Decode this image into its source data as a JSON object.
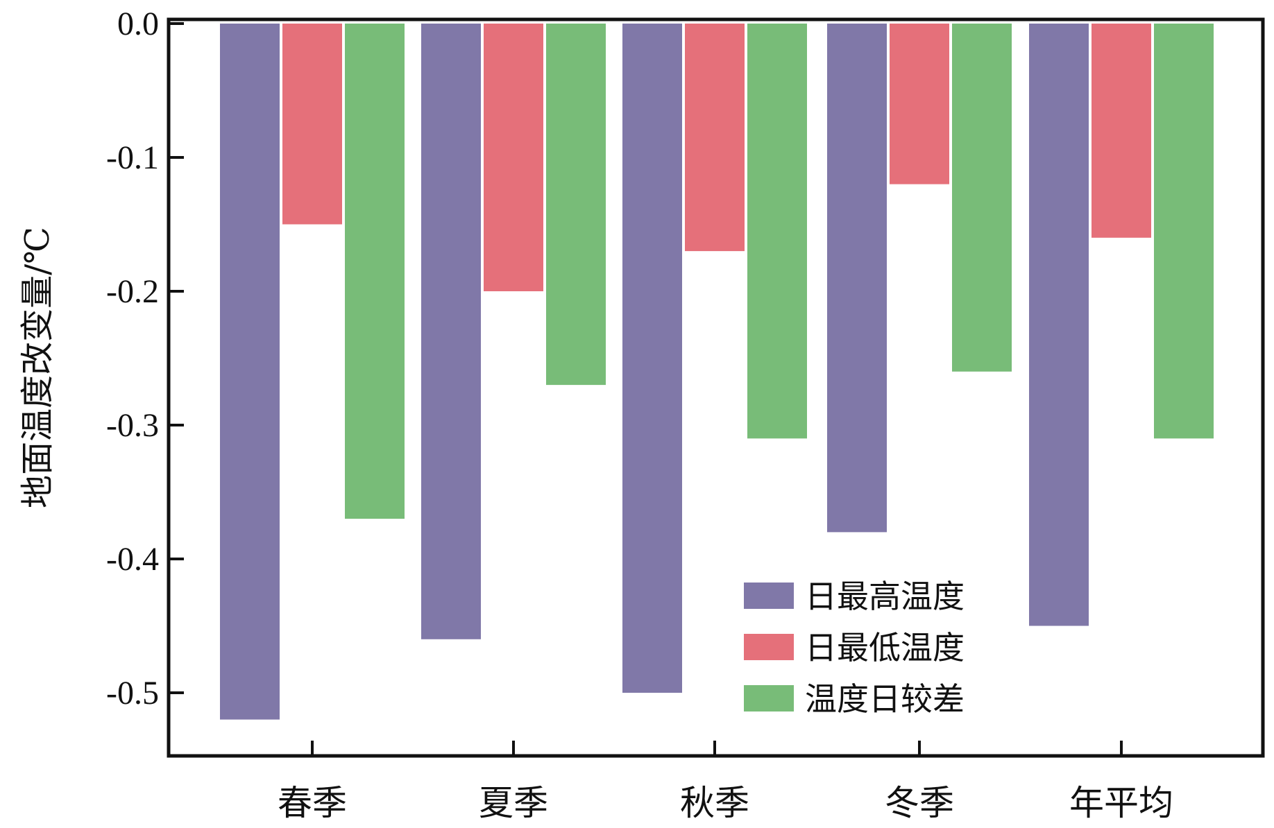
{
  "chart_data": {
    "type": "bar",
    "title": "",
    "xlabel": "",
    "ylabel": "地面温度改变量/℃",
    "ylim": [
      -0.55,
      0.0
    ],
    "yticks": [
      "0.0",
      "-0.1",
      "-0.2",
      "-0.3",
      "-0.4",
      "-0.5"
    ],
    "grid": false,
    "legend_position": "bottom-right",
    "categories": [
      "春季",
      "夏季",
      "秋季",
      "冬季",
      "年平均"
    ],
    "series": [
      {
        "name": "日最高温度",
        "color": "#8078a8",
        "values": [
          -0.52,
          -0.46,
          -0.5,
          -0.38,
          -0.45
        ]
      },
      {
        "name": "日最低温度",
        "color": "#e5707a",
        "values": [
          -0.15,
          -0.2,
          -0.17,
          -0.12,
          -0.16
        ]
      },
      {
        "name": "温度日较差",
        "color": "#78bc78",
        "values": [
          -0.37,
          -0.27,
          -0.31,
          -0.26,
          -0.31
        ]
      }
    ]
  }
}
